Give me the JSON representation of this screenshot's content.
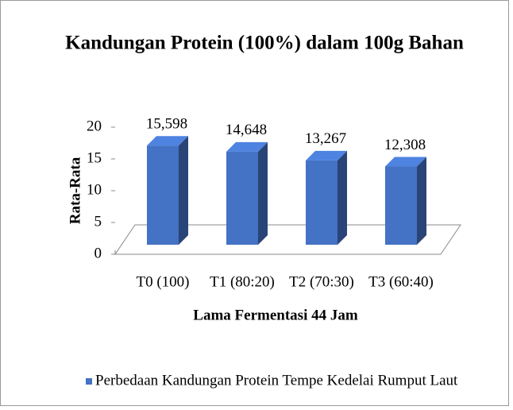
{
  "chart_data": {
    "type": "bar3d",
    "title": "Kandungan Protein (100%) dalam 100g Bahan",
    "categories": [
      "T0 (100)",
      "T1 (80:20)",
      "T2 (70:30)",
      "T3 (60:40)"
    ],
    "series": [
      {
        "name": "Perbedaan Kandungan Protein Tempe Kedelai Rumput Laut",
        "color": "#4472c4",
        "values": [
          15.598,
          14.648,
          13.267,
          12.308
        ],
        "value_labels": [
          "15,598",
          "14,648",
          "13,267",
          "12,308"
        ]
      }
    ],
    "x_label": "Lama Fermentasi 44 Jam",
    "y_label": "Rata-Rata",
    "ylim": [
      0,
      20
    ],
    "yticks": [
      0,
      5,
      10,
      15,
      20
    ],
    "legend": "bottom"
  }
}
